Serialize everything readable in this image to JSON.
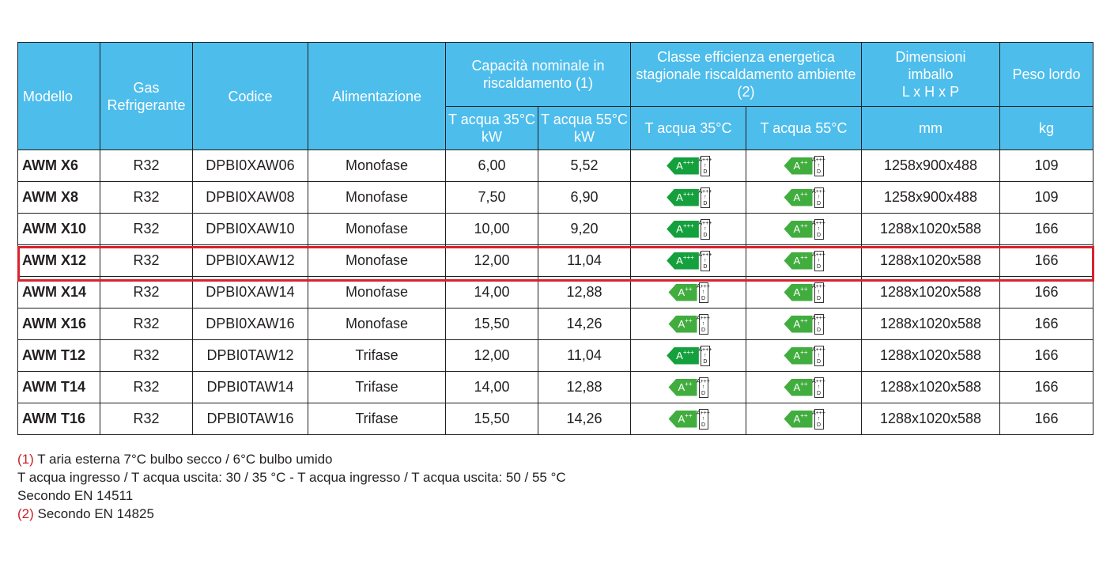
{
  "header": {
    "model": "Modello",
    "gas": "Gas Refrigerante",
    "code": "Codice",
    "power": "Alimentazione",
    "capacity": "Capacità nominale in riscaldamento (1)",
    "efficiency": "Classe efficienza energetica stagionale riscaldamento ambiente (2)",
    "dimensions_l1": "Dimensioni",
    "dimensions_l2": "imballo",
    "dimensions_l3": "L x H x P",
    "weight": "Peso lordo",
    "cap35": "T acqua 35°C kW",
    "cap55": "T acqua 55°C kW",
    "eff35": "T acqua 35°C",
    "eff55": "T acqua 55°C",
    "dim_unit": "mm",
    "weight_unit": "kg"
  },
  "label_scale": {
    "top": "A+++",
    "arrow": "↑",
    "bottom": "D"
  },
  "rows": [
    {
      "model": "AWM X6",
      "gas": "R32",
      "code": "DPBI0XAW06",
      "power": "Monofase",
      "cap35": "6,00",
      "cap55": "5,52",
      "eff35": "A+++",
      "eff55": "A++",
      "dims": "1258x900x488",
      "weight": "109"
    },
    {
      "model": "AWM X8",
      "gas": "R32",
      "code": "DPBI0XAW08",
      "power": "Monofase",
      "cap35": "7,50",
      "cap55": "6,90",
      "eff35": "A+++",
      "eff55": "A++",
      "dims": "1258x900x488",
      "weight": "109"
    },
    {
      "model": "AWM X10",
      "gas": "R32",
      "code": "DPBI0XAW10",
      "power": "Monofase",
      "cap35": "10,00",
      "cap55": "9,20",
      "eff35": "A+++",
      "eff55": "A++",
      "dims": "1288x1020x588",
      "weight": "166"
    },
    {
      "model": "AWM X12",
      "gas": "R32",
      "code": "DPBI0XAW12",
      "power": "Monofase",
      "cap35": "12,00",
      "cap55": "11,04",
      "eff35": "A+++",
      "eff55": "A++",
      "dims": "1288x1020x588",
      "weight": "166",
      "highlighted": true
    },
    {
      "model": "AWM X14",
      "gas": "R32",
      "code": "DPBI0XAW14",
      "power": "Monofase",
      "cap35": "14,00",
      "cap55": "12,88",
      "eff35": "A++",
      "eff55": "A++",
      "dims": "1288x1020x588",
      "weight": "166"
    },
    {
      "model": "AWM X16",
      "gas": "R32",
      "code": "DPBI0XAW16",
      "power": "Monofase",
      "cap35": "15,50",
      "cap55": "14,26",
      "eff35": "A++",
      "eff55": "A++",
      "dims": "1288x1020x588",
      "weight": "166"
    },
    {
      "model": "AWM T12",
      "gas": "R32",
      "code": "DPBI0TAW12",
      "power": "Trifase",
      "cap35": "12,00",
      "cap55": "11,04",
      "eff35": "A+++",
      "eff55": "A++",
      "dims": "1288x1020x588",
      "weight": "166"
    },
    {
      "model": "AWM T14",
      "gas": "R32",
      "code": "DPBI0TAW14",
      "power": "Trifase",
      "cap35": "14,00",
      "cap55": "12,88",
      "eff35": "A++",
      "eff55": "A++",
      "dims": "1288x1020x588",
      "weight": "166"
    },
    {
      "model": "AWM T16",
      "gas": "R32",
      "code": "DPBI0TAW16",
      "power": "Trifase",
      "cap35": "15,50",
      "cap55": "14,26",
      "eff35": "A++",
      "eff55": "A++",
      "dims": "1288x1020x588",
      "weight": "166"
    }
  ],
  "colors": {
    "header_bg": "#4dbdec",
    "highlight": "#d9232e",
    "label_green": "#14a03c",
    "label_green_light": "#41ad3e",
    "note_marker": "#c8222a"
  },
  "notes": {
    "n1_marker": "(1)",
    "n1_text": " T aria esterna 7°C bulbo secco / 6°C bulbo umido",
    "n1_line2": "T acqua ingresso / T acqua uscita: 30 / 35 °C - T acqua ingresso / T acqua uscita: 50 / 55 °C",
    "n1_line3": "Secondo EN 14511",
    "n2_marker": "(2)",
    "n2_text": " Secondo EN 14825"
  }
}
